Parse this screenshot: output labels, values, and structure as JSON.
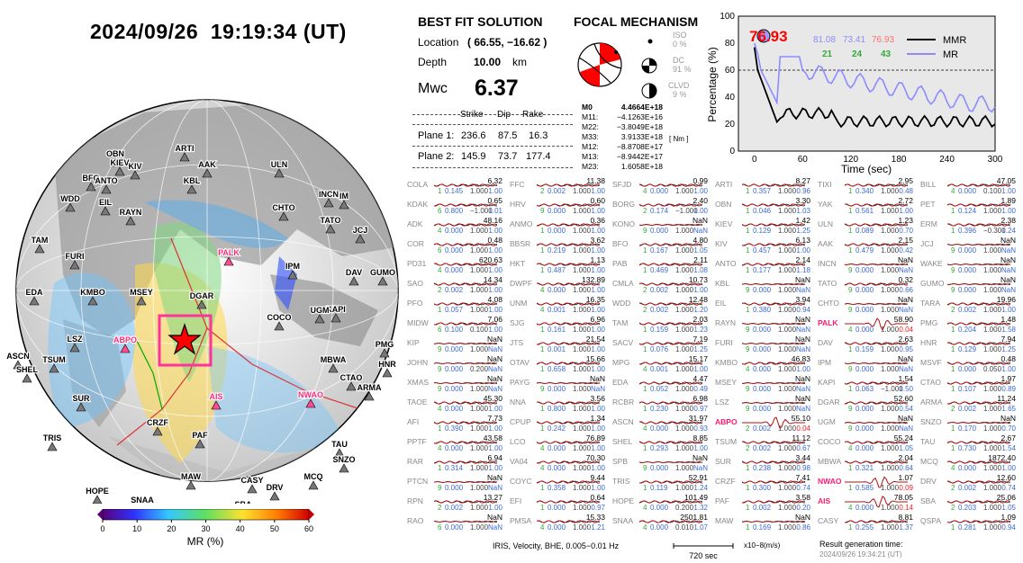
{
  "header": {
    "title": "2024/09/26  19:19:34 (UT)"
  },
  "best_fit": {
    "heading": "BEST FIT SOLUTION",
    "location_label": "Location",
    "location_value": "( 66.55,  −16.62 )",
    "depth_label": "Depth",
    "depth_value": "10.00",
    "depth_unit": "km",
    "mw_label": "Mwc",
    "mw_value": "6.37",
    "col_strike": "Strike",
    "col_dip": "Dip",
    "col_rake": "Rake",
    "plane1_label": "Plane 1:",
    "plane1": [
      "236.6",
      "87.5",
      "16.3"
    ],
    "plane2_label": "Plane 2:",
    "plane2": [
      "145.9",
      "73.7",
      "177.4"
    ]
  },
  "focal": {
    "heading": "FOCAL MECHANISM",
    "iso_label": "ISO",
    "iso_value": "0 %",
    "dc_label": "DC",
    "dc_value": "91 %",
    "clvd_label": "CLVD",
    "clvd_value": "9 %",
    "m0_label": "M0",
    "m0_value": "4.4664E+18",
    "unit": "[ Nm ]",
    "tensor": [
      {
        "k": "M11:",
        "v": "−4.1263E+16"
      },
      {
        "k": "M22:",
        "v": "−3.8049E+18"
      },
      {
        "k": "M33:",
        "v": "3.9133E+18"
      },
      {
        "k": "M12:",
        "v": "−8.8708E+17"
      },
      {
        "k": "M13:",
        "v": "−8.9442E+17"
      },
      {
        "k": "M23:",
        "v": "1.6058E+18"
      }
    ],
    "accent": "#ff0000"
  },
  "percentage_chart": {
    "peak_label": "76.93",
    "vals_top": [
      "81.08",
      "73.41",
      "76.93"
    ],
    "vals_bottom": [
      "21",
      "24",
      "43"
    ],
    "legend": [
      "MMR",
      "MR"
    ],
    "ylabel": "Percentage (%)",
    "xlabel": "Time (sec)",
    "xticks": [
      "0",
      "60",
      "120",
      "180",
      "240",
      "300"
    ],
    "yticks": [
      "0",
      "20",
      "40",
      "60",
      "80",
      "100"
    ],
    "colors": {
      "mmr": "#000000",
      "mr": "#8c8cff",
      "top1": "#8c8cff",
      "top3": "#ff6f6f",
      "bottom": "#33aa33"
    }
  },
  "colorbar": {
    "label": "MR (%)",
    "ticks": [
      "0",
      "10",
      "20",
      "30",
      "40",
      "50",
      "60"
    ]
  },
  "globe_stations": [
    "ARTI",
    "OBN",
    "KIEV",
    "KIV",
    "AAK",
    "BFO",
    "ANTO",
    "KBL",
    "ULN",
    "WDD",
    "EIL",
    "RAYN",
    "INCN",
    "IM",
    "TAM",
    "CHTO",
    "TATO",
    "JCJ",
    "FURI",
    "PALK",
    "IPM",
    "DAV",
    "GUMO",
    "EDA",
    "KMBO",
    "MSEY",
    "DGAR",
    "KAPI",
    "UGM",
    "COCO",
    "LSZ",
    "ABPO",
    "PMG",
    "HNR",
    "ASCN",
    "TSUM",
    "SHEL",
    "MBWA",
    "CTAO",
    "SUR",
    "AIS",
    "NWAO",
    "ARMA",
    "TRIS",
    "CRZF",
    "PAF",
    "TAU",
    "SNZO",
    "MAW",
    "CASY",
    "DRV",
    "MCQ",
    "HOPE",
    "SNAA",
    "SBA",
    "QSPA"
  ],
  "stations": [
    {
      "n": "COLA",
      "a": "6.32",
      "s": "1",
      "c1": "0.145",
      "c2": "1.000",
      "c3": "1.00"
    },
    {
      "n": "KDAK",
      "a": "0.65",
      "s": "6",
      "c1": "0.800",
      "c2": "−1.000",
      "c3": "1.01"
    },
    {
      "n": "ADK",
      "a": "48.16",
      "s": "4",
      "c1": "0.000",
      "c2": "1.000",
      "c3": "1.00"
    },
    {
      "n": "COR",
      "a": "0.48",
      "s": "6",
      "c1": "0.000",
      "c2": "1.000",
      "c3": "1.00"
    },
    {
      "n": "PD31",
      "a": "620.63",
      "s": "4",
      "c1": "0.000",
      "c2": "1.000",
      "c3": "1.00"
    },
    {
      "n": "SAO",
      "a": "14.34",
      "s": "2",
      "c1": "0.002",
      "c2": "1.000",
      "c3": "1.00"
    },
    {
      "n": "PFO",
      "a": "4.08",
      "s": "1",
      "c1": "0.057",
      "c2": "1.000",
      "c3": "1.00"
    },
    {
      "n": "MIDW",
      "a": "7.06",
      "s": "6",
      "c1": "0.100",
      "c2": "0.100",
      "c3": "1.00"
    },
    {
      "n": "KIP",
      "a": "NaN",
      "s": "9",
      "c1": "0.000",
      "c2": "1.000",
      "c3": "NaN"
    },
    {
      "n": "JOHN",
      "a": "NaN",
      "s": "9",
      "c1": "0.000",
      "c2": "0.200",
      "c3": "NaN"
    },
    {
      "n": "XMAS",
      "a": "NaN",
      "s": "9",
      "c1": "0.000",
      "c2": "1.000",
      "c3": "NaN"
    },
    {
      "n": "TAOE",
      "a": "45.30",
      "s": "4",
      "c1": "0.000",
      "c2": "1.000",
      "c3": "1.00"
    },
    {
      "n": "AFI",
      "a": "7.73",
      "s": "1",
      "c1": "0.390",
      "c2": "1.000",
      "c3": "1.00"
    },
    {
      "n": "PPTF",
      "a": "43.58",
      "s": "4",
      "c1": "0.000",
      "c2": "1.000",
      "c3": "1.00"
    },
    {
      "n": "RAR",
      "a": "6.94",
      "s": "1",
      "c1": "0.314",
      "c2": "1.000",
      "c3": "1.00"
    },
    {
      "n": "PTCN",
      "a": "NaN",
      "s": "9",
      "c1": "0.000",
      "c2": "1.000",
      "c3": "NaN"
    },
    {
      "n": "RPN",
      "a": "13.27",
      "s": "2",
      "c1": "0.002",
      "c2": "1.000",
      "c3": "1.00"
    },
    {
      "n": "RAO",
      "a": "NaN",
      "s": "6",
      "c1": "0.000",
      "c2": "1.000",
      "c3": "NaN"
    },
    {
      "n": "FFC",
      "a": "11.38",
      "s": "2",
      "c1": "0.002",
      "c2": "1.000",
      "c3": "1.00"
    },
    {
      "n": "HRV",
      "a": "0.60",
      "s": "9",
      "c1": "0.000",
      "c2": "1.000",
      "c3": "1.00"
    },
    {
      "n": "ANMO",
      "a": "0.36",
      "s": "1",
      "c1": "0.000",
      "c2": "1.000",
      "c3": "1.00"
    },
    {
      "n": "BBSR",
      "a": "3.62",
      "s": "1",
      "c1": "0.219",
      "c2": "1.000",
      "c3": "1.00"
    },
    {
      "n": "HKT",
      "a": "1.13",
      "s": "1",
      "c1": "0.487",
      "c2": "1.000",
      "c3": "1.00"
    },
    {
      "n": "DWPF",
      "a": "132.89",
      "s": "4",
      "c1": "0.000",
      "c2": "1.000",
      "c3": "1.00"
    },
    {
      "n": "UNM",
      "a": "16.35",
      "s": "4",
      "c1": "0.001",
      "c2": "1.000",
      "c3": "1.00"
    },
    {
      "n": "SJG",
      "a": "6.96",
      "s": "1",
      "c1": "0.161",
      "c2": "1.000",
      "c3": "1.00"
    },
    {
      "n": "JTS",
      "a": "21.54",
      "s": "1",
      "c1": "0.001",
      "c2": "1.000",
      "c3": "1.00"
    },
    {
      "n": "OTAV",
      "a": "15.66",
      "s": "1",
      "c1": "0.658",
      "c2": "1.000",
      "c3": "1.00"
    },
    {
      "n": "PAYG",
      "a": "NaN",
      "s": "9",
      "c1": "0.000",
      "c2": "1.000",
      "c3": "NaN"
    },
    {
      "n": "NNA",
      "a": "3.56",
      "s": "1",
      "c1": "0.800",
      "c2": "1.000",
      "c3": "1.00"
    },
    {
      "n": "CPUP",
      "a": "1.34",
      "s": "1",
      "c1": "0.242",
      "c2": "1.000",
      "c3": "1.00"
    },
    {
      "n": "LCO",
      "a": "76.89",
      "s": "4",
      "c1": "0.000",
      "c2": "1.000",
      "c3": "1.00"
    },
    {
      "n": "VA04",
      "a": "70.30",
      "s": "4",
      "c1": "0.000",
      "c2": "1.000",
      "c3": "1.00"
    },
    {
      "n": "COYC",
      "a": "9.44",
      "s": "1",
      "c1": "0.358",
      "c2": "1.000",
      "c3": "1.00"
    },
    {
      "n": "EFI",
      "a": "0.64",
      "s": "1",
      "c1": "0.000",
      "c2": "1.000",
      "c3": "0.97"
    },
    {
      "n": "PMSA",
      "a": "15.33",
      "s": "4",
      "c1": "0.000",
      "c2": "1.000",
      "c3": "1.21"
    },
    {
      "n": "SFJD",
      "a": "0.99",
      "s": "4",
      "c1": "0.000",
      "c2": "1.000",
      "c3": "1.00"
    },
    {
      "n": "BORG",
      "a": "2.40",
      "s": "2",
      "c1": "0.174",
      "c2": "−1.000",
      "c3": "1.00"
    },
    {
      "n": "KONO",
      "a": "NaN",
      "s": "9",
      "c1": "0.000",
      "c2": "1.000",
      "c3": "NaN"
    },
    {
      "n": "BFO",
      "a": "4.80",
      "s": "1",
      "c1": "0.167",
      "c2": "1.000",
      "c3": "1.05"
    },
    {
      "n": "PAB",
      "a": "2.11",
      "s": "1",
      "c1": "0.469",
      "c2": "1.000",
      "c3": "1.08"
    },
    {
      "n": "CMLA",
      "a": "10.73",
      "s": "2",
      "c1": "0.002",
      "c2": "1.000",
      "c3": "1.00"
    },
    {
      "n": "WDD",
      "a": "12.48",
      "s": "2",
      "c1": "0.002",
      "c2": "1.000",
      "c3": "1.20"
    },
    {
      "n": "TAM",
      "a": "2.03",
      "s": "1",
      "c1": "0.159",
      "c2": "1.000",
      "c3": "1.23"
    },
    {
      "n": "SACV",
      "a": "7.19",
      "s": "1",
      "c1": "0.076",
      "c2": "1.000",
      "c3": "1.25"
    },
    {
      "n": "MPG",
      "a": "15.17",
      "s": "4",
      "c1": "0.001",
      "c2": "1.000",
      "c3": "1.00"
    },
    {
      "n": "EDA",
      "a": "4.47",
      "s": "1",
      "c1": "0.052",
      "c2": "1.000",
      "c3": "0.49"
    },
    {
      "n": "RCBR",
      "a": "6.98",
      "s": "1",
      "c1": "0.230",
      "c2": "1.000",
      "c3": "0.97"
    },
    {
      "n": "ASCN",
      "a": "31.97",
      "s": "4",
      "c1": "0.000",
      "c2": "1.000",
      "c3": "0.93"
    },
    {
      "n": "SHEL",
      "a": "8.85",
      "s": "1",
      "c1": "0.293",
      "c2": "1.000",
      "c3": "1.00"
    },
    {
      "n": "SPB",
      "a": "NaN",
      "s": "9",
      "c1": "0.000",
      "c2": "1.000",
      "c3": "NaN"
    },
    {
      "n": "TRIS",
      "a": "52.91",
      "s": "1",
      "c1": "0.119",
      "c2": "1.000",
      "c3": "1.24"
    },
    {
      "n": "HOPE",
      "a": "101.49",
      "s": "4",
      "c1": "0.000",
      "c2": "0.200",
      "c3": "1.32"
    },
    {
      "n": "SNAA",
      "a": "2501.81",
      "s": "4",
      "c1": "0.000",
      "c2": "0.010",
      "c3": "1.07"
    },
    {
      "n": "ARTI",
      "a": "8.27",
      "s": "1",
      "c1": "0.357",
      "c2": "1.000",
      "c3": "0.96"
    },
    {
      "n": "OBN",
      "a": "3.30",
      "s": "1",
      "c1": "0.046",
      "c2": "1.000",
      "c3": "1.03"
    },
    {
      "n": "KIEV",
      "a": "1.42",
      "s": "1",
      "c1": "0.129",
      "c2": "1.000",
      "c3": "1.25"
    },
    {
      "n": "KIV",
      "a": "6.13",
      "s": "1",
      "c1": "0.457",
      "c2": "1.000",
      "c3": "1.00"
    },
    {
      "n": "ANTO",
      "a": "2.14",
      "s": "1",
      "c1": "0.177",
      "c2": "1.000",
      "c3": "1.18"
    },
    {
      "n": "KBL",
      "a": "NaN",
      "s": "9",
      "c1": "0.000",
      "c2": "1.000",
      "c3": "NaN"
    },
    {
      "n": "EIL",
      "a": "3.94",
      "s": "1",
      "c1": "0.380",
      "c2": "1.000",
      "c3": "0.94"
    },
    {
      "n": "RAYN",
      "a": "NaN",
      "s": "9",
      "c1": "0.000",
      "c2": "1.000",
      "c3": "NaN"
    },
    {
      "n": "FURI",
      "a": "NaN",
      "s": "9",
      "c1": "0.000",
      "c2": "1.000",
      "c3": "NaN"
    },
    {
      "n": "KMBO",
      "a": "46.83",
      "s": "4",
      "c1": "0.000",
      "c2": "1.000",
      "c3": "1.00"
    },
    {
      "n": "MSEY",
      "a": "NaN",
      "s": "9",
      "c1": "0.000",
      "c2": "1.000",
      "c3": "NaN"
    },
    {
      "n": "LSZ",
      "a": "NaN",
      "s": "9",
      "c1": "0.000",
      "c2": "1.000",
      "c3": "NaN"
    },
    {
      "n": "ABPO",
      "a": "55.10",
      "s": "2",
      "c1": "0.002",
      "c2": "1.000",
      "c3": "0.04",
      "hi": true
    },
    {
      "n": "TSUM",
      "a": "11.12",
      "s": "2",
      "c1": "0.002",
      "c2": "1.000",
      "c3": "0.67"
    },
    {
      "n": "SUR",
      "a": "3.44",
      "s": "1",
      "c1": "0.238",
      "c2": "1.000",
      "c3": "0.98"
    },
    {
      "n": "CRZF",
      "a": "7.41",
      "s": "1",
      "c1": "0.300",
      "c2": "1.000",
      "c3": "0.74"
    },
    {
      "n": "PAF",
      "a": "3.58",
      "s": "1",
      "c1": "0.002",
      "c2": "1.000",
      "c3": "0.20"
    },
    {
      "n": "MAW",
      "a": "NaN",
      "s": "1",
      "c1": "0.169",
      "c2": "1.000",
      "c3": "0.86"
    },
    {
      "n": "TIXI",
      "a": "2.95",
      "s": "1",
      "c1": "0.340",
      "c2": "1.000",
      "c3": "0.48"
    },
    {
      "n": "YAK",
      "a": "2.72",
      "s": "1",
      "c1": "0.561",
      "c2": "1.000",
      "c3": "1.00"
    },
    {
      "n": "ULN",
      "a": "1.23",
      "s": "1",
      "c1": "0.089",
      "c2": "1.000",
      "c3": "0.70"
    },
    {
      "n": "AAK",
      "a": "2.15",
      "s": "1",
      "c1": "0.479",
      "c2": "1.000",
      "c3": "0.42"
    },
    {
      "n": "INCN",
      "a": "NaN",
      "s": "9",
      "c1": "0.000",
      "c2": "1.000",
      "c3": "NaN"
    },
    {
      "n": "TATO",
      "a": "0.32",
      "s": "9",
      "c1": "0.000",
      "c2": "1.000",
      "c3": "0.66"
    },
    {
      "n": "CHTO",
      "a": "NaN",
      "s": "9",
      "c1": "0.000",
      "c2": "1.000",
      "c3": "NaN"
    },
    {
      "n": "PALK",
      "a": "58.90",
      "s": "4",
      "c1": "0.000",
      "c2": "1.000",
      "c3": "0.04",
      "hi": true
    },
    {
      "n": "DAV",
      "a": "2.63",
      "s": "1",
      "c1": "0.159",
      "c2": "1.000",
      "c3": "0.95"
    },
    {
      "n": "IPM",
      "a": "NaN",
      "s": "9",
      "c1": "0.000",
      "c2": "1.000",
      "c3": "NaN"
    },
    {
      "n": "KAPI",
      "a": "1.54",
      "s": "1",
      "c1": "0.063",
      "c2": "−1.000",
      "c3": "1.50"
    },
    {
      "n": "DGAR",
      "a": "52.60",
      "s": "9",
      "c1": "0.000",
      "c2": "1.000",
      "c3": "0.54"
    },
    {
      "n": "UGM",
      "a": "NaN",
      "s": "9",
      "c1": "0.000",
      "c2": "1.000",
      "c3": "NaN"
    },
    {
      "n": "COCO",
      "a": "55.24",
      "s": "4",
      "c1": "0.000",
      "c2": "1.000",
      "c3": "1.05"
    },
    {
      "n": "MBWA",
      "a": "2.04",
      "s": "1",
      "c1": "0.321",
      "c2": "1.000",
      "c3": "0.64"
    },
    {
      "n": "NWAO",
      "a": "1.07",
      "s": "1",
      "c1": "0.585",
      "c2": "1.000",
      "c3": "0.09",
      "hi": true
    },
    {
      "n": "AIS",
      "a": "78.05",
      "s": "4",
      "c1": "0.000",
      "c2": "1.000",
      "c3": "0.14",
      "hi": true
    },
    {
      "n": "CASY",
      "a": "8.81",
      "s": "1",
      "c1": "0.255",
      "c2": "1.000",
      "c3": "1.37"
    },
    {
      "n": "BILL",
      "a": "47.05",
      "s": "4",
      "c1": "0.000",
      "c2": "0.100",
      "c3": "1.00"
    },
    {
      "n": "PET",
      "a": "1.89",
      "s": "1",
      "c1": "0.124",
      "c2": "1.000",
      "c3": "1.00"
    },
    {
      "n": "ERM",
      "a": "2.38",
      "s": "1",
      "c1": "0.396",
      "c2": "−0.300",
      "c3": "1.24"
    },
    {
      "n": "JCJ",
      "a": "NaN",
      "s": "9",
      "c1": "0.000",
      "c2": "1.000",
      "c3": "NaN"
    },
    {
      "n": "WAKE",
      "a": "NaN",
      "s": "9",
      "c1": "0.000",
      "c2": "1.000",
      "c3": "NaN"
    },
    {
      "n": "GUMO",
      "a": "NaN",
      "s": "9",
      "c1": "0.000",
      "c2": "1.000",
      "c3": "NaN"
    },
    {
      "n": "TARA",
      "a": "19.96",
      "s": "2",
      "c1": "0.002",
      "c2": "1.000",
      "c3": "1.00"
    },
    {
      "n": "PMG",
      "a": "1.48",
      "s": "1",
      "c1": "0.204",
      "c2": "1.000",
      "c3": "1.58"
    },
    {
      "n": "HNR",
      "a": "7.94",
      "s": "1",
      "c1": "0.129",
      "c2": "1.000",
      "c3": "1.25"
    },
    {
      "n": "MSVF",
      "a": "0.48",
      "s": "1",
      "c1": "0.000",
      "c2": "0.050",
      "c3": "1.00"
    },
    {
      "n": "CTAO",
      "a": "1.97",
      "s": "1",
      "c1": "0.107",
      "c2": "1.000",
      "c3": "0.89"
    },
    {
      "n": "ARMA",
      "a": "11.24",
      "s": "2",
      "c1": "0.002",
      "c2": "1.000",
      "c3": "1.65"
    },
    {
      "n": "SNZO",
      "a": "NaN",
      "s": "1",
      "c1": "0.170",
      "c2": "1.000",
      "c3": "0.70"
    },
    {
      "n": "TAU",
      "a": "2.67",
      "s": "1",
      "c1": "0.730",
      "c2": "1.000",
      "c3": "1.54"
    },
    {
      "n": "MCQ",
      "a": "1872.40",
      "s": "4",
      "c1": "0.000",
      "c2": "1.000",
      "c3": "1.00"
    },
    {
      "n": "DRV",
      "a": "12.60",
      "s": "2",
      "c1": "0.002",
      "c2": "1.000",
      "c3": "0.74"
    },
    {
      "n": "SBA",
      "a": "25.06",
      "s": "2",
      "c1": "0.203",
      "c2": "1.000",
      "c3": "1.05"
    },
    {
      "n": "QSPA",
      "a": "1.09",
      "s": "1",
      "c1": "0.281",
      "c2": "1.000",
      "c3": "0.94"
    }
  ],
  "footer": {
    "note": "IRIS, Velocity,   BHE, 0.005−0.01 Hz",
    "scale_label": "720 sec",
    "scale_unit": "x10−8(m/s)",
    "result_label": "Result generation time:",
    "result_time": "2024/09/26 19:34:21 (UT)"
  }
}
